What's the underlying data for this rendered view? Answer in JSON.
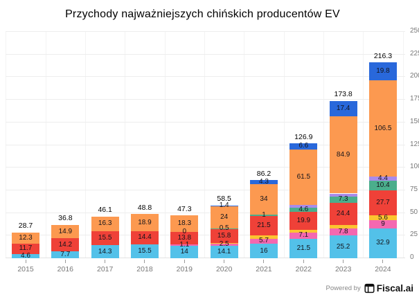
{
  "title": "Przychody najważniejszych chińskich producentów EV",
  "footer": {
    "powered_by": "Powered by",
    "brand": "Fiscal.ai"
  },
  "chart_data": {
    "type": "bar",
    "stacked": true,
    "title": "Przychody najważniejszych chińskich producentów EV",
    "categories": [
      "2015",
      "2016",
      "2017",
      "2018",
      "2019",
      "2020",
      "2021",
      "2022",
      "2023",
      "2024"
    ],
    "totals": [
      28.7,
      36.8,
      46.1,
      48.8,
      47.3,
      58.5,
      86.2,
      126.9,
      173.8,
      216.3
    ],
    "total_labels": [
      "28.7",
      "36.8",
      "46.1",
      "48.8",
      "47.3",
      "58.5",
      "86.2",
      "126.9",
      "173.8",
      "216.3"
    ],
    "grid": true,
    "legend": "none",
    "y_axis": {
      "min": 0,
      "max": 250,
      "step": 25,
      "side": "right"
    },
    "series": [
      {
        "name": "segment-lightblue",
        "color": "#53C1E9",
        "values": [
          4.6,
          7.7,
          14.3,
          15.5,
          14,
          14.1,
          16,
          21.5,
          25.2,
          32.9
        ],
        "labels": [
          "4.6",
          "7.7",
          "14.3",
          "15.5",
          "14",
          "14.1",
          "16",
          "21.5",
          "25.2",
          "32.9"
        ]
      },
      {
        "name": "segment-pink",
        "color": "#F468B0",
        "values": [
          0,
          0,
          0,
          0,
          1.1,
          2.5,
          5.7,
          7.1,
          7.8,
          9
        ],
        "labels": [
          "",
          "",
          "",
          "",
          "1.1",
          "2.5",
          "5.7",
          "7.1",
          "7.8",
          "9"
        ]
      },
      {
        "name": "segment-yellow",
        "color": "#FCC430",
        "values": [
          0,
          0,
          0,
          0,
          0,
          0.2,
          3.7,
          3.0,
          3.6,
          5.6
        ],
        "labels": [
          "",
          "",
          "",
          "",
          "",
          "",
          "",
          "",
          "",
          "5.6"
        ]
      },
      {
        "name": "segment-red",
        "color": "#EF4138",
        "values": [
          11.7,
          14.2,
          15.5,
          14.4,
          13.8,
          15.8,
          21.5,
          19.9,
          24.4,
          27.7
        ],
        "labels": [
          "11.7",
          "14.2",
          "15.5",
          "14.4",
          "13.8",
          "15.8",
          "21.5",
          "19.9",
          "24.4",
          "27.7"
        ]
      },
      {
        "name": "segment-green",
        "color": "#4BAE8C",
        "values": [
          0,
          0,
          0,
          0,
          0,
          0.5,
          1,
          4.6,
          7.3,
          10.4
        ],
        "labels": [
          "",
          "",
          "",
          "",
          "0",
          "0.5",
          "1",
          "4.6",
          "7.3",
          "10.4"
        ]
      },
      {
        "name": "segment-purple",
        "color": "#A98BEA",
        "values": [
          0,
          0,
          0,
          0,
          0,
          0,
          0,
          2.7,
          3.2,
          4.4
        ],
        "labels": [
          "",
          "",
          "",
          "",
          "",
          "",
          "",
          "",
          "",
          "4.4"
        ]
      },
      {
        "name": "segment-orange",
        "color": "#FC9950",
        "values": [
          12.3,
          14.9,
          16.3,
          18.9,
          18.3,
          24,
          34,
          61.5,
          84.9,
          106.5
        ],
        "labels": [
          "12.3",
          "14.9",
          "16.3",
          "18.9",
          "18.3",
          "24",
          "34",
          "61.5",
          "84.9",
          "106.5"
        ]
      },
      {
        "name": "segment-royalblue",
        "color": "#2968DB",
        "values": [
          0,
          0,
          0,
          0,
          0,
          1.4,
          4.3,
          6.6,
          17.4,
          19.8
        ],
        "labels": [
          "",
          "",
          "",
          "",
          "",
          "1.4",
          "4.3",
          "6.6",
          "17.4",
          "19.8"
        ]
      }
    ]
  }
}
